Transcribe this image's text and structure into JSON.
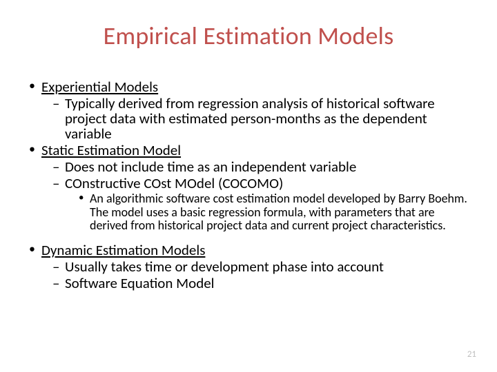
{
  "title": "Empirical Estimation Models",
  "colors": {
    "title_color": "#c0504d",
    "text_color": "#000000",
    "background": "#ffffff",
    "pagenum_color": "#bfbfbf"
  },
  "typography": {
    "title_fontsize": 36,
    "level1_fontsize": 21,
    "level2_fontsize": 21,
    "level3_fontsize": 18,
    "pagenum_fontsize": 13,
    "font_family": "Calibri"
  },
  "bullets": {
    "section1": {
      "heading": "Experiential Models",
      "items": [
        "Typically derived from regression analysis of historical software project data with estimated person-months as the dependent variable"
      ]
    },
    "section2": {
      "heading": "Static Estimation Model",
      "items": [
        "Does not include time as an independent variable",
        "COnstructive COst MOdel (COCOMO)"
      ],
      "subitems": [
        "An algorithmic software cost estimation model developed by Barry Boehm. The model uses a basic regression formula, with parameters that are derived from historical project data and current project characteristics."
      ]
    },
    "section3": {
      "heading": "Dynamic Estimation Models",
      "items": [
        "Usually takes time or development phase into account",
        "Software Equation Model"
      ]
    }
  },
  "page_number": "21"
}
